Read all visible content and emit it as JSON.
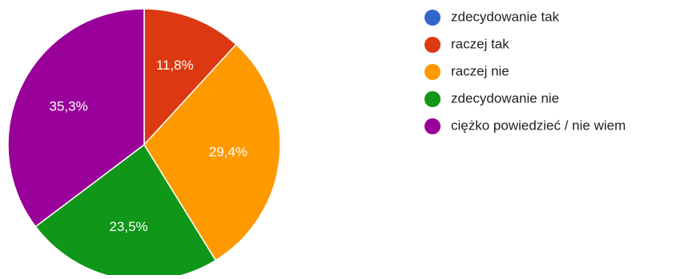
{
  "chart_data": {
    "type": "pie",
    "legend_position": "right",
    "slices": [
      {
        "label": "zdecydowanie tak",
        "value": 0,
        "display": "",
        "color": "#3366cc"
      },
      {
        "label": "raczej tak",
        "value": 11.8,
        "display": "11,8%",
        "color": "#dc3912"
      },
      {
        "label": "raczej nie",
        "value": 29.4,
        "display": "29,4%",
        "color": "#ff9900"
      },
      {
        "label": "zdecydowanie nie",
        "value": 23.5,
        "display": "23,5%",
        "color": "#109618"
      },
      {
        "label": "ciężko powiedzieć / nie wiem",
        "value": 35.3,
        "display": "35,3%",
        "color": "#990099"
      }
    ]
  }
}
